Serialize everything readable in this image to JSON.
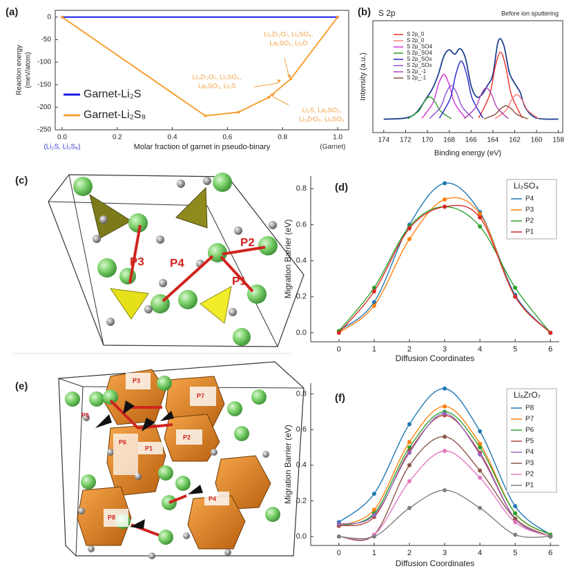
{
  "chart_data": [
    {
      "type": "line",
      "panel_label": "(a)",
      "x_label": "Molar fraction of garnet in pseudo-binary",
      "y_label": [
        "Reaction energy",
        "(meV/atom)"
      ],
      "end_labels": [
        "(Li₂S, Li₂S₈)",
        "(Garnet)"
      ],
      "xlim": [
        -0.025,
        1.04
      ],
      "xticks": [
        {
          "value": 0,
          "label": "0.0"
        },
        {
          "value": 0.2,
          "label": "0.2"
        },
        {
          "value": 0.4,
          "label": "0.4"
        },
        {
          "value": 0.6,
          "label": "0.6"
        },
        {
          "value": 0.8,
          "label": "0.8"
        },
        {
          "value": 1,
          "label": "1.0"
        }
      ],
      "ylim": [
        -250,
        15
      ],
      "yticks": [
        0,
        -50,
        -100,
        -150,
        -200,
        -250
      ],
      "series": [
        {
          "name": "Garnet-Li₂S",
          "color": "#1a1ae6",
          "x": [
            0,
            1
          ],
          "values": [
            0,
            0
          ]
        },
        {
          "name": "Garnet-Li₂S₈",
          "color": "#f5a030",
          "x": [
            0,
            0.52,
            0.64,
            0.75,
            0.83,
            1
          ],
          "values": [
            0,
            -219,
            -211,
            -178,
            -137,
            0
          ]
        }
      ],
      "annotations": [
        [
          "Li₂Zr₂O₇, Li₂SO₄,",
          "La₂SO₂, Li₂O"
        ],
        [
          "Li₂Zr₂O₇, Li₂SO₄,",
          "La₂SO₂, Li₂S"
        ],
        [
          "Li₂S, La₂SO₂,",
          "Li₂ZrO₃, Li₂SO₄"
        ]
      ]
    },
    {
      "type": "line",
      "panel_label": "(b)",
      "title": "S 2p",
      "note": "Before ion sputtering",
      "x_label": "Binding energy (eV)",
      "y_label": "Intensity (a.u.)",
      "xlim": [
        175,
        157.6
      ],
      "xticks": [
        174,
        172,
        170,
        168,
        166,
        164,
        162,
        160,
        158
      ],
      "ylim": [
        0,
        100
      ],
      "series": [
        {
          "name": "S 2p_0",
          "color": "#e8302a",
          "x": [
            165.3,
            164.3,
            163.8,
            163.3,
            162.8,
            162.3,
            161.3
          ],
          "values": [
            13,
            33.6,
            58.2,
            72,
            58.2,
            33.6,
            13
          ]
        },
        {
          "name": "S 2p_0",
          "color": "#ff7a7a",
          "x": [
            163.8,
            162.8,
            162.3,
            161.8,
            161.3,
            160.8,
            159.8
          ],
          "values": [
            12.4,
            19.9,
            28.9,
            34,
            28.9,
            19.9,
            12.4
          ]
        },
        {
          "name": "S 2p_SO4",
          "color": "#d432d4",
          "x": [
            170.5,
            169.5,
            169,
            168.5,
            168,
            167.5,
            166.5
          ],
          "values": [
            12.7,
            26.4,
            42.8,
            52,
            42.8,
            26.4,
            12.7
          ]
        },
        {
          "name": "S 2p_SO4",
          "color": "#2ca02c",
          "x": [
            171.8,
            170.8,
            170.3,
            169.8,
            169.3,
            168.8,
            167.8
          ],
          "values": [
            12.3,
            19.2,
            27.4,
            32,
            27.4,
            19.2,
            12.3
          ]
        },
        {
          "name": "S 2p_SOx",
          "color": "#2222cc",
          "x": [
            168.9,
            167.9,
            167.4,
            166.9,
            166.4,
            165.9,
            164.9
          ],
          "values": [
            12.9,
            30.7,
            52,
            64,
            52,
            30.7,
            12.9
          ]
        },
        {
          "name": "S 2p_SOx",
          "color": "#8a4fd0",
          "x": [
            169.8,
            168.8,
            168.3,
            167.8,
            167.3,
            166.8,
            165.8
          ],
          "values": [
            12.5,
            22.8,
            35.1,
            42,
            35.1,
            22.8,
            12.5
          ]
        },
        {
          "name": "S 2p_-1",
          "color": "#b040b0",
          "x": [
            166.6,
            165.6,
            165.1,
            164.6,
            164.1,
            163.6,
            162.6
          ],
          "values": [
            12.5,
            22.1,
            33.6,
            40,
            33.6,
            22.1,
            12.5
          ]
        },
        {
          "name": "S 2p_-1",
          "color": "#8b4a3a",
          "x": [
            164.8,
            163.8,
            163.3,
            162.8,
            162.3,
            161.8,
            160.8
          ],
          "values": [
            12.2,
            16.3,
            21.2,
            24,
            21.2,
            16.3,
            12.2
          ]
        }
      ],
      "envelope": {
        "color": "#1f3f8f",
        "x": [
          174,
          172,
          171,
          170,
          169.5,
          169,
          168.5,
          168,
          167.5,
          167,
          166.5,
          166,
          165.5,
          165,
          164.5,
          164,
          163.5,
          163,
          162.5,
          162,
          161.5,
          161,
          160,
          158
        ],
        "values": [
          12,
          13,
          18,
          32,
          40,
          52,
          68,
          74,
          70,
          75,
          66,
          42,
          32,
          34,
          42,
          52,
          82,
          78,
          54,
          44,
          36,
          22,
          13,
          12
        ]
      }
    },
    {
      "type": "line",
      "panel_label": "(d)",
      "legend_title": "Li₂SO₄",
      "x_label": "Diffusion Coordinates",
      "y_label": "Migration Barrier (eV)",
      "x": [
        0,
        1,
        2,
        3,
        4,
        5,
        6
      ],
      "xlim": [
        -0.8,
        6.25
      ],
      "xticks": [
        0,
        1,
        2,
        3,
        4,
        5,
        6
      ],
      "ylim": [
        -0.05,
        0.87
      ],
      "yticks": [
        {
          "value": 0,
          "label": "0.0"
        },
        {
          "value": 0.2,
          "label": "0.2"
        },
        {
          "value": 0.4,
          "label": "0.4"
        },
        {
          "value": 0.6,
          "label": "0.6"
        },
        {
          "value": 0.8,
          "label": "0.8"
        }
      ],
      "series": [
        {
          "name": "P4",
          "color": "#1f77b4",
          "values": [
            0.01,
            0.17,
            0.6,
            0.83,
            0.67,
            0.21,
            0.0
          ]
        },
        {
          "name": "P3",
          "color": "#ff7f0e",
          "values": [
            0.0,
            0.15,
            0.52,
            0.74,
            0.66,
            0.2,
            0.0
          ]
        },
        {
          "name": "P2",
          "color": "#2ca02c",
          "values": [
            0.01,
            0.25,
            0.59,
            0.7,
            0.59,
            0.25,
            0.0
          ]
        },
        {
          "name": "P1",
          "color": "#d62728",
          "values": [
            0.0,
            0.23,
            0.58,
            0.7,
            0.64,
            0.2,
            0.0
          ]
        }
      ]
    },
    {
      "type": "line",
      "panel_label": "(f)",
      "legend_title": "Li₆ZrO₇",
      "x_label": "Diffusion Coordinates",
      "y_label": "Migration Barrier (eV)",
      "x": [
        0,
        1,
        2,
        3,
        4,
        5,
        6
      ],
      "xlim": [
        -0.8,
        6.25
      ],
      "xticks": [
        0,
        1,
        2,
        3,
        4,
        5,
        6
      ],
      "ylim": [
        -0.05,
        0.86
      ],
      "yticks": [
        {
          "value": 0,
          "label": "0.0"
        },
        {
          "value": 0.2,
          "label": "0.2"
        },
        {
          "value": 0.4,
          "label": "0.4"
        },
        {
          "value": 0.6,
          "label": "0.6"
        },
        {
          "value": 0.8,
          "label": "0.8"
        }
      ],
      "series": [
        {
          "name": "P8",
          "color": "#1f77b4",
          "values": [
            0.08,
            0.24,
            0.63,
            0.83,
            0.59,
            0.17,
            0.01
          ]
        },
        {
          "name": "P7",
          "color": "#ff7f0e",
          "values": [
            0.06,
            0.15,
            0.53,
            0.73,
            0.52,
            0.13,
            0.01
          ]
        },
        {
          "name": "P6",
          "color": "#2ca02c",
          "values": [
            0.06,
            0.13,
            0.5,
            0.7,
            0.5,
            0.13,
            0.01
          ]
        },
        {
          "name": "P5",
          "color": "#b5443e",
          "values": [
            0.06,
            0.11,
            0.48,
            0.68,
            0.47,
            0.1,
            0.0
          ]
        },
        {
          "name": "P4",
          "color": "#9467bd",
          "values": [
            0.07,
            0.12,
            0.47,
            0.69,
            0.46,
            0.1,
            0.0
          ]
        },
        {
          "name": "P3",
          "color": "#8c564b",
          "values": [
            0.0,
            0.01,
            0.4,
            0.56,
            0.37,
            0.1,
            0.0
          ]
        },
        {
          "name": "P2",
          "color": "#e377c2",
          "values": [
            0.0,
            0.01,
            0.31,
            0.48,
            0.33,
            0.08,
            0.0
          ]
        },
        {
          "name": "P1",
          "color": "#7f7f7f",
          "values": [
            0.0,
            0.0,
            0.16,
            0.26,
            0.16,
            0.01,
            0.0
          ]
        }
      ]
    }
  ],
  "structures": {
    "c": {
      "panel_label": "(c)",
      "paths": [
        "P1",
        "P2",
        "P3",
        "P4"
      ]
    },
    "e": {
      "panel_label": "(e)",
      "paths": [
        "P1",
        "P2",
        "P3",
        "P4",
        "P5",
        "P6",
        "P7",
        "P8"
      ]
    }
  }
}
